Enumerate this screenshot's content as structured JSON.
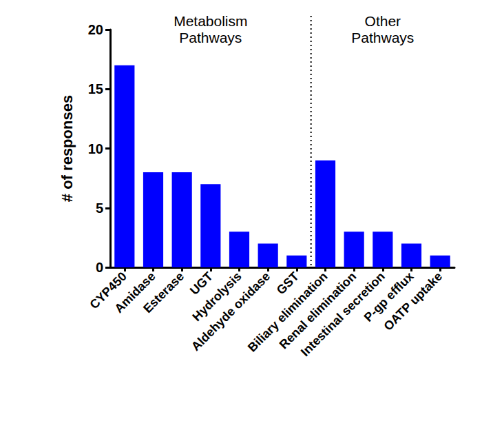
{
  "chart_data": {
    "type": "bar",
    "y_label": "# of responses",
    "categories": [
      "CYP450",
      "Amidase",
      "Esterase",
      "UGT",
      "Hydrolysis",
      "Aldehyde oxidase",
      "GST",
      "Biliary elimination",
      "Renal elimination",
      "Intestinal secretion",
      "P-gp efflux",
      "OATP uptake"
    ],
    "values": [
      17,
      8,
      8,
      7,
      3,
      2,
      1,
      9,
      3,
      3,
      2,
      1
    ],
    "color": "#0000ff",
    "ylim": [
      0,
      20
    ],
    "yticks": [
      0,
      5,
      10,
      15,
      20
    ],
    "grid": false,
    "annotations": [
      {
        "text": "Metabolism Pathways",
        "from": "CYP450",
        "to": "GST"
      },
      {
        "text": "Other Pathways",
        "from": "Biliary elimination",
        "to": "OATP uptake"
      }
    ]
  }
}
